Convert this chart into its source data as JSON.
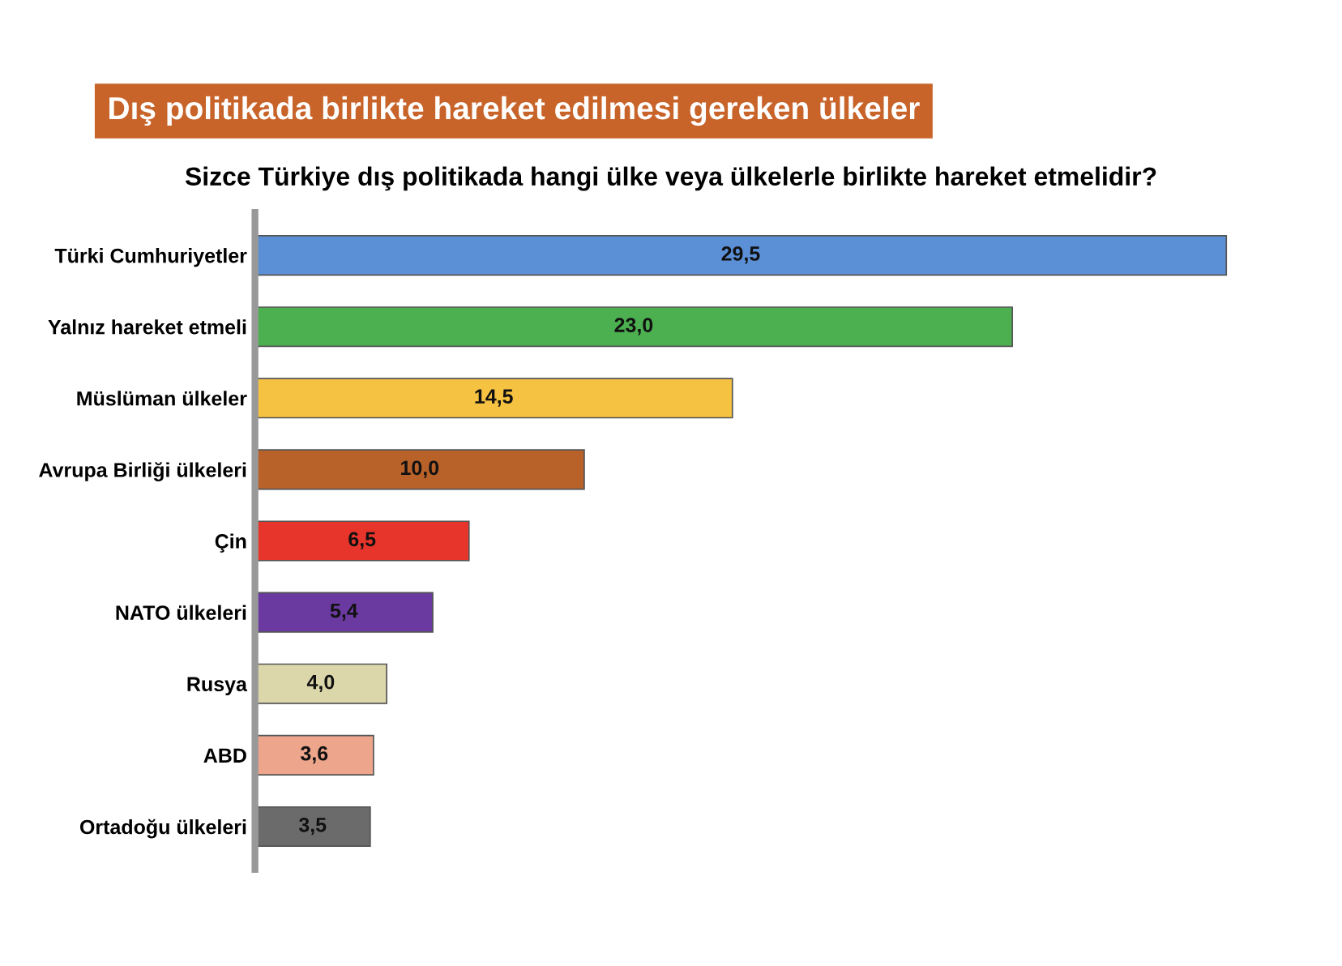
{
  "chart_data": {
    "type": "bar",
    "orientation": "horizontal",
    "title": "Dış politikada birlikte hareket edilmesi gereken ülkeler",
    "subtitle": "Sizce Türkiye dış politikada hangi ülke veya ülkelerle birlikte hareket etmelidir?",
    "categories": [
      "Türki Cumhuriyetler",
      "Yalnız hareket etmeli",
      "Müslüman ülkeler",
      "Avrupa Birliği ülkeleri",
      "Çin",
      "NATO ülkeleri",
      "Rusya",
      "ABD",
      "Ortadoğu ülkeleri"
    ],
    "values": [
      29.5,
      23.0,
      14.5,
      10.0,
      6.5,
      5.4,
      4.0,
      3.6,
      3.5
    ],
    "value_labels": [
      "29,5",
      "23,0",
      "14,5",
      "10,0",
      "6,5",
      "5,4",
      "4,0",
      "3,6",
      "3,5"
    ],
    "colors": [
      "#5b8fd6",
      "#4cb050",
      "#f5c242",
      "#b8622a",
      "#e8352b",
      "#6a3aa0",
      "#dcd7aa",
      "#eda58c",
      "#6b6b6b"
    ],
    "tick_labels": "y"
  }
}
